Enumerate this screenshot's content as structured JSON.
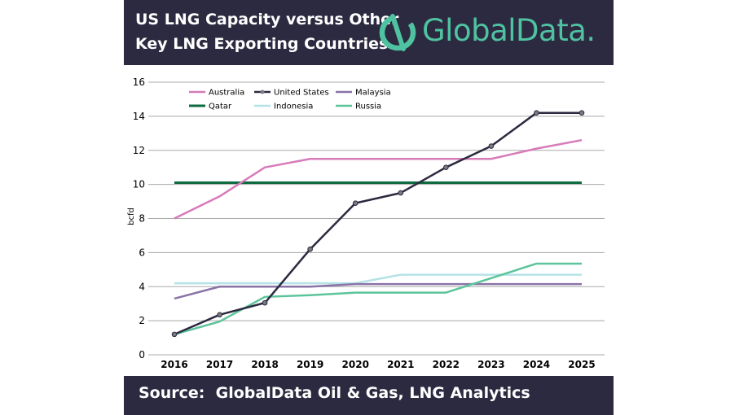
{
  "header": {
    "title_line1": "US LNG Capacity versus Other",
    "title_line2": "Key LNG Exporting Countries",
    "logo_text": "GlobalData."
  },
  "footer": {
    "source": "Source:  GlobalData Oil & Gas, LNG Analytics"
  },
  "colors": {
    "header_bg": "#2c2a40",
    "australia": "#d77bb8",
    "united_states": "#2c2a40",
    "malaysia": "#8a73a6",
    "qatar": "#0d6b3f",
    "indonesia": "#b4e2e6",
    "russia": "#5cc49b",
    "logo": "#4fc3a1"
  },
  "chart_data": {
    "type": "line",
    "title": "US LNG Capacity versus Other Key LNG Exporting Countries",
    "xlabel": "",
    "ylabel": "bcfd",
    "x": [
      "2016",
      "2017",
      "2018",
      "2019",
      "2020",
      "2021",
      "2022",
      "2023",
      "2024",
      "2025"
    ],
    "ylim": [
      0,
      16
    ],
    "yticks": [
      "0",
      "2",
      "4",
      "6",
      "8",
      "10",
      "12",
      "14",
      "16"
    ],
    "grid": true,
    "legend_position": "top-left",
    "series": [
      {
        "name": "Australia",
        "key": "australia",
        "markers": false,
        "values": [
          8.0,
          9.3,
          11.0,
          11.5,
          11.5,
          11.5,
          11.5,
          11.5,
          12.1,
          12.6
        ]
      },
      {
        "name": "United States",
        "key": "united_states",
        "markers": true,
        "values": [
          1.2,
          2.35,
          3.05,
          6.2,
          8.9,
          9.5,
          11.0,
          12.25,
          14.2,
          14.2
        ]
      },
      {
        "name": "Malaysia",
        "key": "malaysia",
        "markers": false,
        "values": [
          3.3,
          4.0,
          4.0,
          4.0,
          4.15,
          4.15,
          4.15,
          4.15,
          4.15,
          4.15
        ]
      },
      {
        "name": "Qatar",
        "key": "qatar",
        "markers": false,
        "values": [
          10.1,
          10.1,
          10.1,
          10.1,
          10.1,
          10.1,
          10.1,
          10.1,
          10.1,
          10.1
        ]
      },
      {
        "name": "Indonesia",
        "key": "indonesia",
        "markers": false,
        "values": [
          4.2,
          4.2,
          4.2,
          4.2,
          4.2,
          4.7,
          4.7,
          4.7,
          4.7,
          4.7
        ]
      },
      {
        "name": "Russia",
        "key": "russia",
        "markers": false,
        "values": [
          1.2,
          1.95,
          3.4,
          3.5,
          3.65,
          3.65,
          3.65,
          4.5,
          5.35,
          5.35
        ]
      }
    ]
  }
}
